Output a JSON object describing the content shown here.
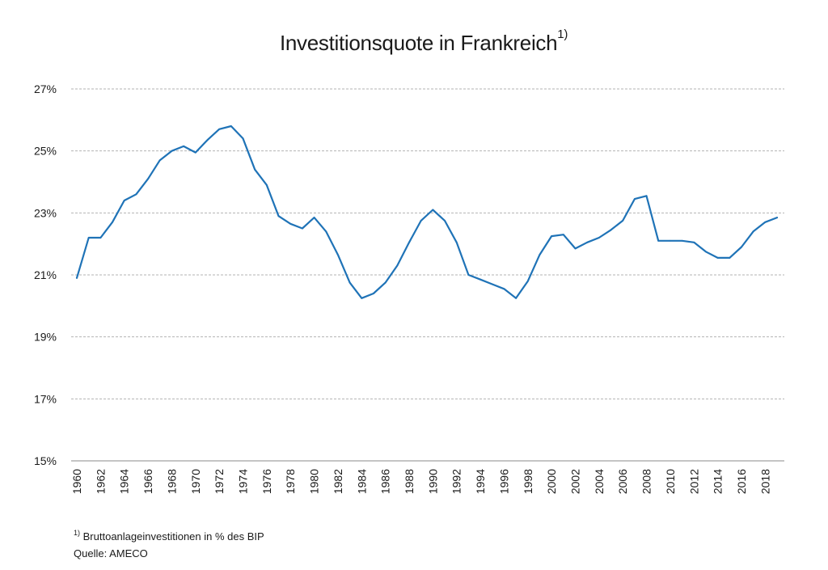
{
  "chart_data": {
    "type": "line",
    "title": "Investitionsquote in Frankreich",
    "title_marker": "1)",
    "x": [
      1960,
      1961,
      1962,
      1963,
      1964,
      1965,
      1966,
      1967,
      1968,
      1969,
      1970,
      1971,
      1972,
      1973,
      1974,
      1975,
      1976,
      1977,
      1978,
      1979,
      1980,
      1981,
      1982,
      1983,
      1984,
      1985,
      1986,
      1987,
      1988,
      1989,
      1990,
      1991,
      1992,
      1993,
      1994,
      1995,
      1996,
      1997,
      1998,
      1999,
      2000,
      2001,
      2002,
      2003,
      2004,
      2005,
      2006,
      2007,
      2008,
      2009,
      2010,
      2011,
      2012,
      2013,
      2014,
      2015,
      2016,
      2017,
      2018,
      2019
    ],
    "series": [
      {
        "values": [
          20.9,
          22.2,
          22.2,
          22.7,
          23.4,
          23.6,
          24.1,
          24.7,
          25.0,
          25.15,
          24.95,
          25.35,
          25.7,
          25.8,
          25.4,
          24.4,
          23.9,
          22.9,
          22.65,
          22.5,
          22.85,
          22.4,
          21.65,
          20.75,
          20.25,
          20.4,
          20.75,
          21.3,
          22.05,
          22.75,
          23.1,
          22.75,
          22.05,
          21.0,
          20.85,
          20.7,
          20.55,
          20.25,
          20.8,
          21.65,
          22.25,
          22.3,
          21.85,
          22.05,
          22.2,
          22.45,
          22.75,
          23.45,
          23.55,
          22.1,
          22.1,
          22.1,
          22.05,
          21.75,
          21.55,
          21.55,
          21.9,
          22.4,
          22.7,
          22.85
        ],
        "color": "#1f73b7"
      }
    ],
    "y_ticks": [
      "27%",
      "25%",
      "23%",
      "21%",
      "19%",
      "17%",
      "15%"
    ],
    "y_tick_values": [
      27,
      25,
      23,
      21,
      19,
      17,
      15
    ],
    "x_ticks": [
      "1960",
      "1962",
      "1964",
      "1966",
      "1968",
      "1970",
      "1972",
      "1974",
      "1976",
      "1978",
      "1980",
      "1982",
      "1984",
      "1986",
      "1988",
      "1990",
      "1992",
      "1994",
      "1996",
      "1998",
      "2000",
      "2002",
      "2004",
      "2006",
      "2008",
      "2010",
      "2012",
      "2014",
      "2016",
      "2018"
    ],
    "ylim": [
      15,
      27
    ],
    "xlim": [
      1960,
      2019
    ],
    "grid": true,
    "grid_style": "dashed",
    "legend": "none"
  },
  "footnotes": {
    "marker": "1)",
    "note": "Bruttoanlageinvestitionen in % des BIP",
    "source": "Quelle: AMECO"
  }
}
